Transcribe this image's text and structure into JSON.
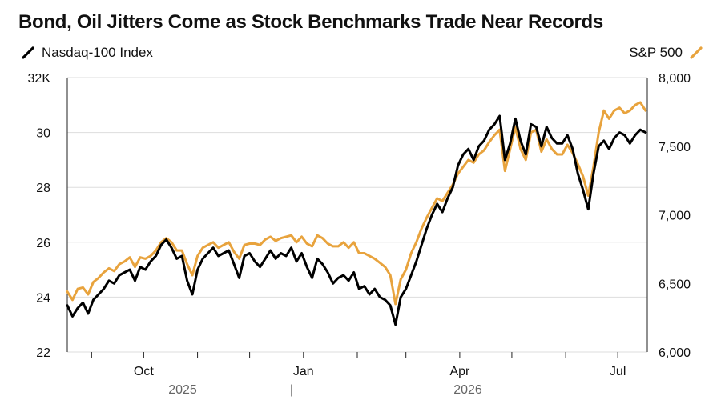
{
  "chart_data": {
    "type": "line",
    "title": "Bond, Oil Jitters Come as Stock Benchmarks Trade Near Records",
    "xlabel": "",
    "ylabel_left": "",
    "ylabel_right": "",
    "grid": true,
    "legend": {
      "left": "Nasdaq-100 Index",
      "right": "S&P 500"
    },
    "colors": {
      "nasdaq": "#000000",
      "sp500": "#E8A33D",
      "grid": "#dddddd"
    },
    "left_axis": {
      "min": 22,
      "max": 32,
      "ticks": [
        22,
        24,
        26,
        28,
        30
      ],
      "top_label": "32K"
    },
    "right_axis": {
      "min": 6000,
      "max": 8000,
      "ticks": [
        "6,000",
        "6,500",
        "7,000",
        "7,500",
        "8,000"
      ]
    },
    "x_axis": {
      "month_labels": [
        "Oct",
        "Jan",
        "Apr",
        "Jul"
      ],
      "year_labels": [
        "2025",
        "2026"
      ],
      "year_separator": "|",
      "range": [
        "2025-09-01",
        "2026-08-01"
      ]
    },
    "series": [
      {
        "name": "Nasdaq-100 Index",
        "axis": "left",
        "x": [
          "2025-09-01",
          "2025-09-04",
          "2025-09-07",
          "2025-09-10",
          "2025-09-13",
          "2025-09-16",
          "2025-09-19",
          "2025-09-22",
          "2025-09-25",
          "2025-09-28",
          "2025-10-01",
          "2025-10-04",
          "2025-10-07",
          "2025-10-10",
          "2025-10-13",
          "2025-10-16",
          "2025-10-19",
          "2025-10-22",
          "2025-10-25",
          "2025-10-28",
          "2025-10-31",
          "2025-11-03",
          "2025-11-06",
          "2025-11-09",
          "2025-11-12",
          "2025-11-15",
          "2025-11-18",
          "2025-11-21",
          "2025-11-24",
          "2025-11-27",
          "2025-11-30",
          "2025-12-03",
          "2025-12-06",
          "2025-12-09",
          "2025-12-12",
          "2025-12-15",
          "2025-12-18",
          "2025-12-21",
          "2025-12-24",
          "2025-12-27",
          "2025-12-30",
          "2026-01-02",
          "2026-01-05",
          "2026-01-08",
          "2026-01-11",
          "2026-01-14",
          "2026-01-17",
          "2026-01-20",
          "2026-01-23",
          "2026-01-26",
          "2026-01-29",
          "2026-02-01",
          "2026-02-04",
          "2026-02-07",
          "2026-02-10",
          "2026-02-13",
          "2026-02-16",
          "2026-02-19",
          "2026-02-22",
          "2026-02-25",
          "2026-02-28",
          "2026-03-03",
          "2026-03-06",
          "2026-03-09",
          "2026-03-12",
          "2026-03-15",
          "2026-03-18",
          "2026-03-21",
          "2026-03-24",
          "2026-03-27",
          "2026-03-30",
          "2026-04-02",
          "2026-04-05",
          "2026-04-08",
          "2026-04-11",
          "2026-04-14",
          "2026-04-17",
          "2026-04-20",
          "2026-04-23",
          "2026-04-26",
          "2026-04-29",
          "2026-05-02",
          "2026-05-05",
          "2026-05-08",
          "2026-05-11",
          "2026-05-14",
          "2026-05-17",
          "2026-05-20",
          "2026-05-23",
          "2026-05-26",
          "2026-05-29",
          "2026-06-01",
          "2026-06-04",
          "2026-06-07",
          "2026-06-10",
          "2026-06-13",
          "2026-06-16",
          "2026-06-19",
          "2026-06-22",
          "2026-06-25",
          "2026-06-28",
          "2026-07-01",
          "2026-07-04",
          "2026-07-07",
          "2026-07-10",
          "2026-07-13",
          "2026-07-16",
          "2026-07-19",
          "2026-07-22",
          "2026-07-25",
          "2026-07-28",
          "2026-07-31"
        ],
        "values": [
          23.7,
          23.3,
          23.6,
          23.8,
          23.4,
          23.9,
          24.1,
          24.3,
          24.6,
          24.5,
          24.8,
          24.9,
          25.0,
          24.6,
          25.1,
          25.0,
          25.3,
          25.5,
          25.9,
          26.1,
          25.8,
          25.4,
          25.5,
          24.6,
          24.1,
          25.0,
          25.4,
          25.6,
          25.8,
          25.5,
          25.6,
          25.7,
          25.2,
          24.7,
          25.5,
          25.6,
          25.3,
          25.1,
          25.4,
          25.7,
          25.4,
          25.6,
          25.5,
          25.8,
          25.3,
          25.6,
          25.1,
          24.7,
          25.4,
          25.2,
          24.9,
          24.5,
          24.7,
          24.8,
          24.6,
          24.9,
          24.3,
          24.4,
          24.1,
          24.3,
          24.0,
          23.9,
          23.7,
          23.0,
          24.0,
          24.3,
          24.8,
          25.3,
          25.9,
          26.5,
          27.0,
          27.4,
          27.1,
          27.6,
          28.0,
          28.8,
          29.2,
          29.4,
          29.0,
          29.5,
          29.7,
          30.1,
          30.3,
          30.6,
          29.0,
          29.6,
          30.5,
          29.7,
          29.2,
          30.3,
          30.2,
          29.5,
          30.2,
          29.8,
          29.6,
          29.6,
          29.9,
          29.4,
          28.5,
          27.9,
          27.2,
          28.5,
          29.5,
          29.7,
          29.4,
          29.8,
          30.0,
          29.9,
          29.6,
          29.9,
          30.1,
          30.0
        ]
      },
      {
        "name": "S&P 500",
        "axis": "right",
        "x": [
          "2025-09-01",
          "2025-09-04",
          "2025-09-07",
          "2025-09-10",
          "2025-09-13",
          "2025-09-16",
          "2025-09-19",
          "2025-09-22",
          "2025-09-25",
          "2025-09-28",
          "2025-10-01",
          "2025-10-04",
          "2025-10-07",
          "2025-10-10",
          "2025-10-13",
          "2025-10-16",
          "2025-10-19",
          "2025-10-22",
          "2025-10-25",
          "2025-10-28",
          "2025-10-31",
          "2025-11-03",
          "2025-11-06",
          "2025-11-09",
          "2025-11-12",
          "2025-11-15",
          "2025-11-18",
          "2025-11-21",
          "2025-11-24",
          "2025-11-27",
          "2025-11-30",
          "2025-12-03",
          "2025-12-06",
          "2025-12-09",
          "2025-12-12",
          "2025-12-15",
          "2025-12-18",
          "2025-12-21",
          "2025-12-24",
          "2025-12-27",
          "2025-12-30",
          "2026-01-02",
          "2026-01-05",
          "2026-01-08",
          "2026-01-11",
          "2026-01-14",
          "2026-01-17",
          "2026-01-20",
          "2026-01-23",
          "2026-01-26",
          "2026-01-29",
          "2026-02-01",
          "2026-02-04",
          "2026-02-07",
          "2026-02-10",
          "2026-02-13",
          "2026-02-16",
          "2026-02-19",
          "2026-02-22",
          "2026-02-25",
          "2026-02-28",
          "2026-03-03",
          "2026-03-06",
          "2026-03-09",
          "2026-03-12",
          "2026-03-15",
          "2026-03-18",
          "2026-03-21",
          "2026-03-24",
          "2026-03-27",
          "2026-03-30",
          "2026-04-02",
          "2026-04-05",
          "2026-04-08",
          "2026-04-11",
          "2026-04-14",
          "2026-04-17",
          "2026-04-20",
          "2026-04-23",
          "2026-04-26",
          "2026-04-29",
          "2026-05-02",
          "2026-05-05",
          "2026-05-08",
          "2026-05-11",
          "2026-05-14",
          "2026-05-17",
          "2026-05-20",
          "2026-05-23",
          "2026-05-26",
          "2026-05-29",
          "2026-06-01",
          "2026-06-04",
          "2026-06-07",
          "2026-06-10",
          "2026-06-13",
          "2026-06-16",
          "2026-06-19",
          "2026-06-22",
          "2026-06-25",
          "2026-06-28",
          "2026-07-01",
          "2026-07-04",
          "2026-07-07",
          "2026-07-10",
          "2026-07-13",
          "2026-07-16",
          "2026-07-19",
          "2026-07-22",
          "2026-07-25",
          "2026-07-28",
          "2026-07-31"
        ],
        "values": [
          6440,
          6380,
          6460,
          6470,
          6420,
          6510,
          6540,
          6580,
          6610,
          6590,
          6640,
          6660,
          6690,
          6620,
          6690,
          6680,
          6700,
          6740,
          6800,
          6830,
          6800,
          6740,
          6740,
          6640,
          6560,
          6700,
          6760,
          6780,
          6800,
          6760,
          6780,
          6800,
          6730,
          6680,
          6780,
          6790,
          6790,
          6780,
          6820,
          6840,
          6810,
          6830,
          6840,
          6850,
          6800,
          6840,
          6790,
          6770,
          6850,
          6830,
          6790,
          6770,
          6770,
          6800,
          6760,
          6800,
          6720,
          6720,
          6700,
          6680,
          6650,
          6620,
          6560,
          6350,
          6530,
          6600,
          6720,
          6800,
          6900,
          6980,
          7050,
          7120,
          7100,
          7160,
          7220,
          7300,
          7350,
          7400,
          7380,
          7440,
          7470,
          7530,
          7580,
          7620,
          7320,
          7480,
          7640,
          7480,
          7400,
          7600,
          7620,
          7460,
          7550,
          7480,
          7440,
          7440,
          7510,
          7450,
          7370,
          7280,
          7140,
          7350,
          7600,
          7760,
          7700,
          7760,
          7780,
          7740,
          7760,
          7800,
          7820,
          7760
        ]
      }
    ]
  }
}
